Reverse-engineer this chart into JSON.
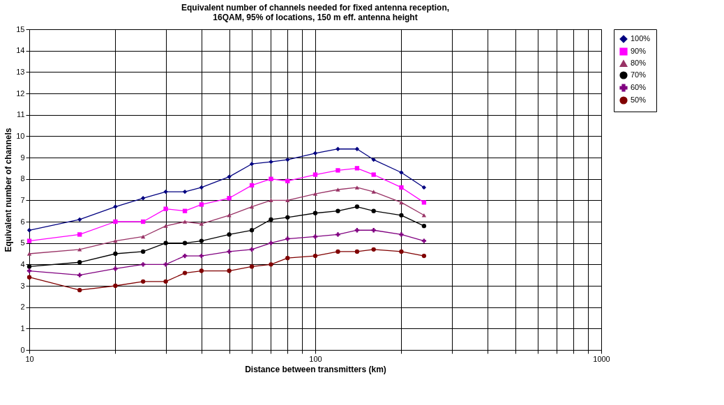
{
  "chart_data": {
    "type": "line",
    "title": [
      "Equivalent number of channels needed for fixed antenna reception,",
      "16QAM, 95% of locations, 150 m eff. antenna height"
    ],
    "xlabel": "Distance between transmitters (km)",
    "ylabel": "Equivalent number of channels",
    "x": [
      10,
      15,
      20,
      25,
      30,
      35,
      40,
      50,
      60,
      70,
      80,
      100,
      120,
      140,
      160,
      200,
      240
    ],
    "series": [
      {
        "name": "100%",
        "color": "#000080",
        "marker": "diamond",
        "values": [
          5.6,
          6.1,
          6.7,
          7.1,
          7.4,
          7.4,
          7.6,
          8.1,
          8.7,
          8.8,
          8.9,
          9.2,
          9.4,
          9.4,
          8.9,
          8.3,
          7.6
        ]
      },
      {
        "name": "90%",
        "color": "#ff00ff",
        "marker": "square",
        "values": [
          5.1,
          5.4,
          6.0,
          6.0,
          6.6,
          6.5,
          6.8,
          7.1,
          7.7,
          8.0,
          7.9,
          8.2,
          8.4,
          8.5,
          8.2,
          7.6,
          6.9
        ]
      },
      {
        "name": "80%",
        "color": "#993366",
        "marker": "triangle",
        "values": [
          4.5,
          4.7,
          5.1,
          5.3,
          5.8,
          6.0,
          5.9,
          6.3,
          6.7,
          7.0,
          7.0,
          7.3,
          7.5,
          7.6,
          7.4,
          6.9,
          6.3
        ]
      },
      {
        "name": "70%",
        "color": "#000000",
        "marker": "circle",
        "values": [
          3.9,
          4.1,
          4.5,
          4.6,
          5.0,
          5.0,
          5.1,
          5.4,
          5.6,
          6.1,
          6.2,
          6.4,
          6.5,
          6.7,
          6.5,
          6.3,
          5.8
        ]
      },
      {
        "name": "60%",
        "color": "#800080",
        "marker": "cross",
        "values": [
          3.7,
          3.5,
          3.8,
          4.0,
          4.0,
          4.4,
          4.4,
          4.6,
          4.7,
          5.0,
          5.2,
          5.3,
          5.4,
          5.6,
          5.6,
          5.4,
          5.1
        ]
      },
      {
        "name": "50%",
        "color": "#800000",
        "marker": "circle",
        "values": [
          3.4,
          2.8,
          3.0,
          3.2,
          3.2,
          3.6,
          3.7,
          3.7,
          3.9,
          4.0,
          4.3,
          4.4,
          4.6,
          4.6,
          4.7,
          4.6,
          4.4
        ]
      }
    ],
    "log": "x",
    "xlim": [
      10,
      1000
    ],
    "xticks": [
      10,
      {
        "value": 20,
        "label": null
      },
      {
        "value": 30,
        "label": null
      },
      {
        "value": 40,
        "label": null
      },
      {
        "value": 50,
        "label": null
      },
      {
        "value": 60,
        "label": null
      },
      {
        "value": 70,
        "label": null
      },
      {
        "value": 80,
        "label": null
      },
      {
        "value": 90,
        "label": null
      },
      100,
      {
        "value": 200,
        "label": null
      },
      {
        "value": 300,
        "label": null
      },
      {
        "value": 400,
        "label": null
      },
      {
        "value": 500,
        "label": null
      },
      {
        "value": 600,
        "label": null
      },
      {
        "value": 700,
        "label": null
      },
      {
        "value": 800,
        "label": null
      },
      {
        "value": 900,
        "label": null
      },
      1000
    ],
    "ylim": [
      0,
      15
    ],
    "yticks": [
      0,
      1,
      2,
      3,
      4,
      5,
      6,
      7,
      8,
      9,
      10,
      11,
      12,
      13,
      14,
      15
    ],
    "grid": true,
    "legend": "right",
    "line_style": "solid"
  }
}
